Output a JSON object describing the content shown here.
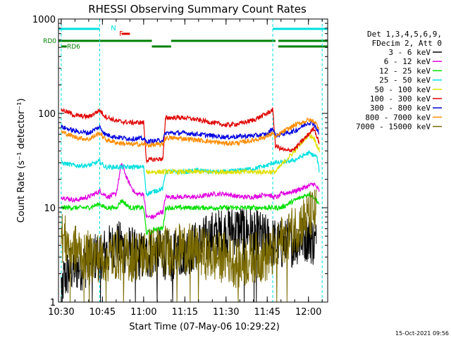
{
  "chart_data": {
    "type": "line",
    "title": "RHESSI Observing Summary Count Rates",
    "xlabel": "Start Time (07-May-06 10:29:22)",
    "ylabel": "Count Rate (s⁻¹ detector⁻¹)",
    "yscale": "log",
    "ylim": [
      1,
      1000
    ],
    "xlim": [
      "10:29",
      "12:07"
    ],
    "x_ticks": [
      "10:30",
      "10:45",
      "11:00",
      "11:15",
      "11:30",
      "11:45",
      "12:00"
    ],
    "y_ticks": [
      "1",
      "10",
      "100",
      "1000"
    ],
    "footer": "15-Oct-2021 09:56",
    "legend": {
      "placement": "right",
      "header": [
        "Det 1,3,4,5,6,9,",
        "FDecim 2, Att 0"
      ],
      "entries": [
        {
          "label": "3 - 6 keV",
          "color": "#000000"
        },
        {
          "label": "6 - 12 keV",
          "color": "#e000e0"
        },
        {
          "label": "12 - 25 keV",
          "color": "#00e000"
        },
        {
          "label": "25 - 50 keV",
          "color": "#00e0e0"
        },
        {
          "label": "50 - 100 keV",
          "color": "#e0e000"
        },
        {
          "label": "100 - 300 keV",
          "color": "#e00000"
        },
        {
          "label": "300 - 800 keV",
          "color": "#0000e0"
        },
        {
          "label": "800 - 7000 keV",
          "color": "#ff8c00"
        },
        {
          "label": "7000 - 15000 keV",
          "color": "#7a6a00"
        }
      ]
    },
    "flags": {
      "labels": [
        "N",
        "F",
        "RD0",
        "RD6"
      ],
      "night": [
        [
          "10:29",
          "10:44"
        ],
        [
          "11:47",
          "12:07"
        ]
      ],
      "flare": [
        [
          "10:52",
          "10:55"
        ]
      ],
      "rd0": [
        [
          "10:29",
          "11:03"
        ],
        [
          "11:10",
          "11:48"
        ],
        [
          "11:49",
          "12:07"
        ]
      ],
      "rd6": [
        [
          "10:30",
          "10:32"
        ],
        [
          "11:03",
          "11:10"
        ],
        [
          "11:49",
          "12:07"
        ]
      ]
    },
    "eclipse_lines": [
      "10:30",
      "10:44",
      "11:47",
      "12:05"
    ],
    "series": [
      {
        "name": "3 - 6 keV",
        "color": "#000000",
        "base": 2.8,
        "points": [
          [
            "10:30",
            1.5
          ],
          [
            "10:33",
            2.2
          ],
          [
            "10:38",
            2.5
          ],
          [
            "10:42",
            3.0
          ],
          [
            "10:47",
            3.5
          ],
          [
            "10:50",
            4.0
          ],
          [
            "10:55",
            3.5
          ],
          [
            "11:00",
            3.0
          ],
          [
            "11:05",
            3.5
          ],
          [
            "11:10",
            3.0
          ],
          [
            "11:15",
            3.5
          ],
          [
            "11:20",
            4.0
          ],
          [
            "11:25",
            5.0
          ],
          [
            "11:30",
            5.5
          ],
          [
            "11:35",
            6.0
          ],
          [
            "11:40",
            5.5
          ],
          [
            "11:45",
            4.5
          ],
          [
            "11:50",
            4.0
          ],
          [
            "11:55",
            4.5
          ],
          [
            "12:00",
            5.0
          ],
          [
            "12:03",
            4.0
          ]
        ]
      },
      {
        "name": "6 - 12 keV",
        "color": "#e000e0",
        "points": [
          [
            "10:30",
            13
          ],
          [
            "10:35",
            12
          ],
          [
            "10:40",
            13
          ],
          [
            "10:44",
            15
          ],
          [
            "10:47",
            13
          ],
          [
            "10:50",
            14
          ],
          [
            "10:52",
            30
          ],
          [
            "10:54",
            20
          ],
          [
            "10:57",
            14
          ],
          [
            "11:00",
            14
          ],
          [
            "11:01",
            8
          ],
          [
            "11:04",
            8
          ],
          [
            "11:06",
            9
          ],
          [
            "11:07",
            9
          ],
          [
            "11:08",
            13
          ],
          [
            "11:15",
            13
          ],
          [
            "11:20",
            13
          ],
          [
            "11:25",
            14
          ],
          [
            "11:30",
            14
          ],
          [
            "11:35",
            13
          ],
          [
            "11:40",
            13
          ],
          [
            "11:45",
            14
          ],
          [
            "11:47",
            13
          ],
          [
            "11:49",
            13
          ],
          [
            "11:50",
            14
          ],
          [
            "11:55",
            15
          ],
          [
            "12:00",
            17
          ],
          [
            "12:02",
            18
          ],
          [
            "12:04",
            15
          ]
        ]
      },
      {
        "name": "12 - 25 keV",
        "color": "#00e000",
        "points": [
          [
            "10:30",
            10
          ],
          [
            "10:35",
            10
          ],
          [
            "10:40",
            10
          ],
          [
            "10:44",
            11
          ],
          [
            "10:46",
            10
          ],
          [
            "10:50",
            10
          ],
          [
            "10:52",
            12
          ],
          [
            "10:55",
            10
          ],
          [
            "11:00",
            10
          ],
          [
            "11:01",
            5.5
          ],
          [
            "11:03",
            5.5
          ],
          [
            "11:04",
            6
          ],
          [
            "11:07",
            6
          ],
          [
            "11:08",
            10
          ],
          [
            "11:15",
            10
          ],
          [
            "11:20",
            10
          ],
          [
            "11:25",
            10
          ],
          [
            "11:30",
            10
          ],
          [
            "11:35",
            10
          ],
          [
            "11:40",
            10
          ],
          [
            "11:45",
            10
          ],
          [
            "11:47",
            10
          ],
          [
            "11:50",
            10
          ],
          [
            "11:55",
            12
          ],
          [
            "12:00",
            14
          ],
          [
            "12:02",
            13
          ],
          [
            "12:04",
            11
          ]
        ]
      },
      {
        "name": "25 - 50 keV",
        "color": "#00e0e0",
        "points": [
          [
            "10:30",
            30
          ],
          [
            "10:35",
            28
          ],
          [
            "10:40",
            28
          ],
          [
            "10:44",
            31
          ],
          [
            "10:46",
            27
          ],
          [
            "10:50",
            27
          ],
          [
            "10:55",
            27
          ],
          [
            "11:00",
            27
          ],
          [
            "11:01",
            14
          ],
          [
            "11:07",
            16
          ],
          [
            "11:08",
            24
          ],
          [
            "11:15",
            24
          ],
          [
            "11:20",
            25
          ],
          [
            "11:25",
            24
          ],
          [
            "11:30",
            24
          ],
          [
            "11:35",
            25
          ],
          [
            "11:40",
            26
          ],
          [
            "11:45",
            28
          ],
          [
            "11:47",
            30
          ],
          [
            "11:50",
            30
          ],
          [
            "11:55",
            32
          ],
          [
            "12:00",
            38
          ],
          [
            "12:03",
            35
          ],
          [
            "12:04",
            24
          ]
        ]
      },
      {
        "name": "50 - 100 keV",
        "color": "#e0e000",
        "points": [
          [
            "11:01",
            24
          ],
          [
            "11:07",
            24
          ],
          [
            "11:08",
            24
          ],
          [
            "11:48",
            24
          ],
          [
            "11:50",
            28
          ],
          [
            "11:55",
            40
          ],
          [
            "12:00",
            60
          ],
          [
            "12:02",
            55
          ],
          [
            "12:04",
            40
          ]
        ]
      },
      {
        "name": "100 - 300 keV",
        "color": "#e00000",
        "points": [
          [
            "10:30",
            110
          ],
          [
            "10:35",
            95
          ],
          [
            "10:40",
            92
          ],
          [
            "10:44",
            108
          ],
          [
            "10:46",
            93
          ],
          [
            "10:50",
            83
          ],
          [
            "10:55",
            80
          ],
          [
            "11:00",
            80
          ],
          [
            "11:01",
            32
          ],
          [
            "11:07",
            33
          ],
          [
            "11:08",
            90
          ],
          [
            "11:15",
            90
          ],
          [
            "11:20",
            85
          ],
          [
            "11:25",
            80
          ],
          [
            "11:30",
            75
          ],
          [
            "11:35",
            78
          ],
          [
            "11:40",
            85
          ],
          [
            "11:45",
            100
          ],
          [
            "11:47",
            110
          ],
          [
            "11:48",
            45
          ],
          [
            "11:52",
            40
          ],
          [
            "11:55",
            42
          ],
          [
            "12:00",
            60
          ],
          [
            "12:02",
            70
          ],
          [
            "12:04",
            48
          ]
        ]
      },
      {
        "name": "300 - 800 keV",
        "color": "#0000e0",
        "points": [
          [
            "10:30",
            72
          ],
          [
            "10:35",
            65
          ],
          [
            "10:40",
            62
          ],
          [
            "10:44",
            72
          ],
          [
            "10:46",
            60
          ],
          [
            "10:50",
            56
          ],
          [
            "10:55",
            54
          ],
          [
            "11:00",
            54
          ],
          [
            "11:01",
            50
          ],
          [
            "11:07",
            52
          ],
          [
            "11:08",
            62
          ],
          [
            "11:15",
            62
          ],
          [
            "11:20",
            60
          ],
          [
            "11:25",
            58
          ],
          [
            "11:30",
            56
          ],
          [
            "11:35",
            57
          ],
          [
            "11:40",
            58
          ],
          [
            "11:45",
            60
          ],
          [
            "11:47",
            70
          ],
          [
            "11:48",
            58
          ],
          [
            "11:50",
            60
          ],
          [
            "11:55",
            65
          ],
          [
            "12:00",
            80
          ],
          [
            "12:02",
            78
          ],
          [
            "12:04",
            60
          ]
        ]
      },
      {
        "name": "800 - 7000 keV",
        "color": "#ff8c00",
        "points": [
          [
            "10:30",
            64
          ],
          [
            "10:35",
            56
          ],
          [
            "10:40",
            53
          ],
          [
            "10:44",
            62
          ],
          [
            "10:46",
            53
          ],
          [
            "10:50",
            49
          ],
          [
            "10:55",
            47
          ],
          [
            "11:00",
            47
          ],
          [
            "11:01",
            46
          ],
          [
            "11:07",
            47
          ],
          [
            "11:08",
            55
          ],
          [
            "11:15",
            54
          ],
          [
            "11:20",
            52
          ],
          [
            "11:25",
            50
          ],
          [
            "11:30",
            48
          ],
          [
            "11:35",
            49
          ],
          [
            "11:40",
            52
          ],
          [
            "11:45",
            57
          ],
          [
            "11:47",
            62
          ],
          [
            "11:48",
            55
          ],
          [
            "11:50",
            62
          ],
          [
            "11:55",
            75
          ],
          [
            "12:00",
            85
          ],
          [
            "12:02",
            83
          ],
          [
            "12:04",
            70
          ]
        ]
      },
      {
        "name": "7000 - 15000 keV",
        "color": "#7a6a00",
        "base": 4.0,
        "points": [
          [
            "10:30",
            5
          ],
          [
            "10:33",
            4.0
          ],
          [
            "10:38",
            3.2
          ],
          [
            "10:42",
            3.0
          ],
          [
            "10:47",
            3.0
          ],
          [
            "10:50",
            3.2
          ],
          [
            "10:55",
            3.0
          ],
          [
            "11:00",
            3.2
          ],
          [
            "11:05",
            3.5
          ],
          [
            "11:10",
            3.5
          ],
          [
            "11:15",
            3.8
          ],
          [
            "11:20",
            3.5
          ],
          [
            "11:25",
            3.0
          ],
          [
            "11:30",
            3.0
          ],
          [
            "11:35",
            2.5
          ],
          [
            "11:40",
            3.0
          ],
          [
            "11:45",
            3.0
          ],
          [
            "11:48",
            3.5
          ],
          [
            "11:50",
            4.5
          ],
          [
            "11:55",
            6
          ],
          [
            "12:00",
            8
          ],
          [
            "12:03",
            9
          ]
        ]
      }
    ]
  }
}
